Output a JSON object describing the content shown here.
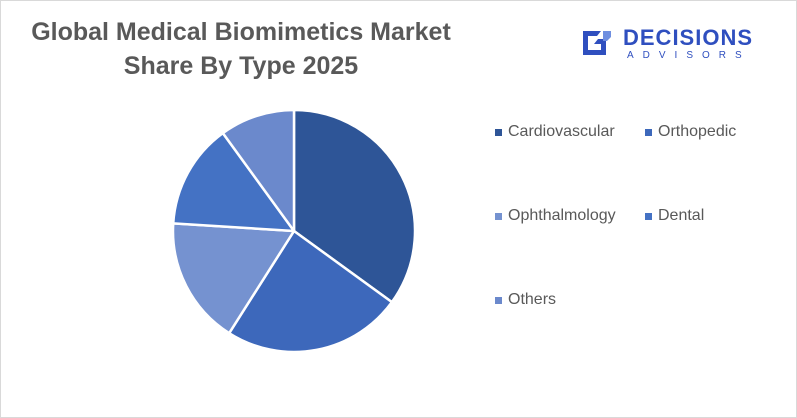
{
  "title_line1": "Global Medical Biomimetics Market",
  "title_line2": "Share By Type 2025",
  "logo": {
    "main": "DECISIONS",
    "sub": "ADVISORS",
    "color": "#2f4fbf",
    "icon": "decisions-logo-mark"
  },
  "chart_data": {
    "type": "pie",
    "title": "Global Medical Biomimetics Market Share By Type 2025",
    "start_angle_deg": 0,
    "direction": "clockwise",
    "legend_position": "right",
    "slices": [
      {
        "label": "Cardiovascular",
        "value": 35,
        "color": "#2e5597"
      },
      {
        "label": "Orthopedic",
        "value": 24,
        "color": "#3d68bb"
      },
      {
        "label": "Ophthalmology",
        "value": 17,
        "color": "#7592d0"
      },
      {
        "label": "Dental",
        "value": 14,
        "color": "#4472c4"
      },
      {
        "label": "Others",
        "value": 10,
        "color": "#6b89cc"
      }
    ]
  }
}
